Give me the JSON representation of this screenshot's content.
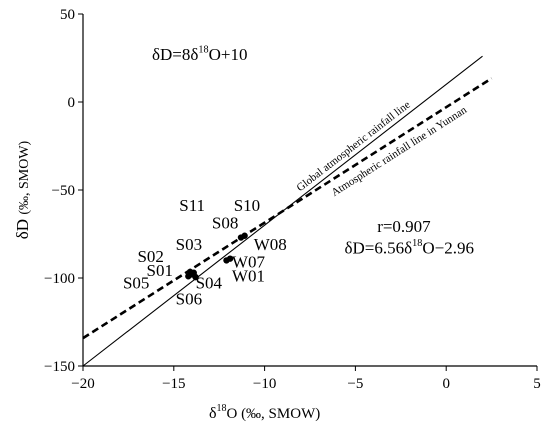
{
  "chart_data": {
    "type": "scatter",
    "xlabel_delta": "δ",
    "xlabel_sup": "18",
    "xlabel_rest": "O (‰, SMOW)",
    "ylabel_main": "δD",
    "ylabel_unit": "(‰, SMOW)",
    "xlim": [
      -20,
      5
    ],
    "ylim": [
      -150,
      50
    ],
    "xticks": [
      -20,
      -15,
      -10,
      -5,
      0,
      5
    ],
    "yticks": [
      -150,
      -100,
      -50,
      0,
      50
    ],
    "xtick_labels": [
      "−20",
      "−15",
      "−10",
      "−5",
      "0",
      "5"
    ],
    "ytick_labels": [
      "−150",
      "−100",
      "−50",
      "0",
      "50"
    ],
    "grid": false,
    "gmwl_equation": {
      "p1": "δD=8δ",
      "sup": "18",
      "p2": "O+10"
    },
    "lines": [
      {
        "label": "Global atmospheric rainfall line",
        "slope": 8,
        "intercept": 10,
        "x": [
          -20,
          2
        ],
        "style": "solid"
      },
      {
        "label": "Atmospheric rainfall line in Yunnan",
        "slope": 6.56,
        "intercept": -2.96,
        "x": [
          -20,
          2.5
        ],
        "style": "dashed"
      }
    ],
    "points": [
      {
        "x": -14.2,
        "y": -99
      },
      {
        "x": -14.0,
        "y": -98
      },
      {
        "x": -13.9,
        "y": -97
      },
      {
        "x": -14.1,
        "y": -96.5
      },
      {
        "x": -13.8,
        "y": -99.5
      },
      {
        "x": -12.1,
        "y": -90
      },
      {
        "x": -11.9,
        "y": -89
      },
      {
        "x": -11.3,
        "y": -77
      },
      {
        "x": -11.1,
        "y": -76
      }
    ],
    "point_labels": [
      {
        "text": "S11",
        "x": -14.7,
        "y": -62
      },
      {
        "text": "S10",
        "x": -11.7,
        "y": -62
      },
      {
        "text": "S08",
        "x": -12.9,
        "y": -72
      },
      {
        "text": "S03",
        "x": -14.9,
        "y": -84
      },
      {
        "text": "W08",
        "x": -10.6,
        "y": -84
      },
      {
        "text": "S02",
        "x": -17.0,
        "y": -91
      },
      {
        "text": "W07",
        "x": -11.8,
        "y": -94
      },
      {
        "text": "S01",
        "x": -16.5,
        "y": -99
      },
      {
        "text": "W01",
        "x": -11.8,
        "y": -102
      },
      {
        "text": "S05",
        "x": -17.8,
        "y": -106
      },
      {
        "text": "S04",
        "x": -13.8,
        "y": -106
      },
      {
        "text": "S06",
        "x": -14.9,
        "y": -115
      }
    ],
    "r_text": "r=0.907",
    "fit_equation": {
      "p1": "δD=6.56δ",
      "sup": "18",
      "p2": "O−2.96"
    }
  }
}
